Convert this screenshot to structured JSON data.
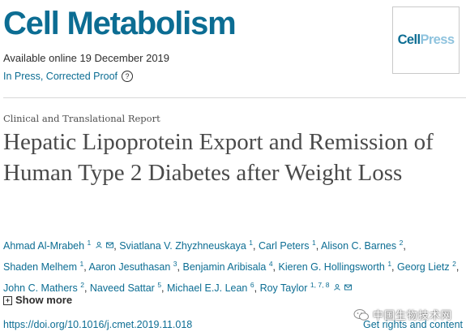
{
  "journal": {
    "title": "Cell Metabolism",
    "available": "Available online 19 December 2019",
    "status": "In Press, Corrected Proof",
    "help_glyph": "?",
    "logo": {
      "cell": "Cell",
      "press": "Press",
      "icon": "cellpress-logo-icon"
    }
  },
  "article": {
    "type": "Clinical and Translational Report",
    "title": "Hepatic Lipoprotein Export and Remission of Human Type 2 Diabetes after Weight Loss"
  },
  "authors": [
    {
      "name": "Ahmad Al-Mrabeh",
      "sup": "1",
      "icons": true,
      "sep": ","
    },
    {
      "name": "Sviatlana V. Zhyzhneuskaya",
      "sup": "1",
      "icons": false,
      "sep": ","
    },
    {
      "name": "Carl Peters",
      "sup": "1",
      "icons": false,
      "sep": ","
    },
    {
      "name": "Alison C. Barnes",
      "sup": "2",
      "icons": false,
      "sep": ","
    },
    {
      "name": "Shaden Melhem",
      "sup": "1",
      "icons": false,
      "sep": ","
    },
    {
      "name": "Aaron Jesuthasan",
      "sup": "3",
      "icons": false,
      "sep": ","
    },
    {
      "name": "Benjamin Aribisala",
      "sup": "4",
      "icons": false,
      "sep": ","
    },
    {
      "name": "Kieren G. Hollingsworth",
      "sup": "1",
      "icons": false,
      "sep": ","
    },
    {
      "name": "Georg Lietz",
      "sup": "2",
      "icons": false,
      "sep": ","
    },
    {
      "name": "John C. Mathers",
      "sup": "2",
      "icons": false,
      "sep": ","
    },
    {
      "name": "Naveed Sattar",
      "sup": "5",
      "icons": false,
      "sep": ","
    },
    {
      "name": "Michael E.J. Lean",
      "sup": "6",
      "icons": false,
      "sep": ","
    },
    {
      "name": "Roy Taylor",
      "sup": "1, 7, 8",
      "icons": true,
      "sep": ""
    }
  ],
  "actions": {
    "show_more": "Show more",
    "plus_glyph": "+",
    "doi": "https://doi.org/10.1016/j.cmet.2019.11.018",
    "rights": "Get rights and content"
  },
  "watermark": {
    "text": "中国生物技术网",
    "icon": "wechat-icon"
  },
  "colors": {
    "link": "#0c6d93",
    "text": "#2e2e2e",
    "title": "#4a4a4a",
    "logo_light": "#8fc3de"
  }
}
